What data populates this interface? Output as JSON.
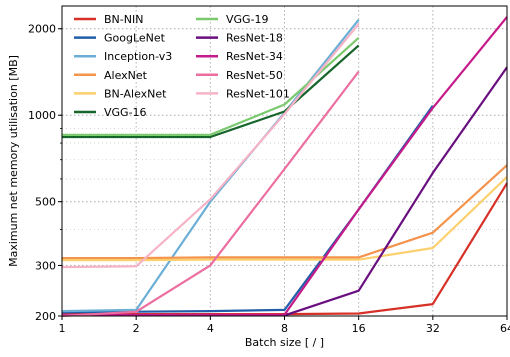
{
  "chart_data": {
    "type": "line",
    "title": "",
    "xlabel": "Batch size [ / ]",
    "ylabel": "Maximum net memory utilisation [MB]",
    "x": [
      1,
      2,
      4,
      8,
      16,
      32,
      64
    ],
    "x_scale": "log2",
    "y_scale": "log",
    "xlim": [
      1,
      64
    ],
    "ylim": [
      200,
      2400
    ],
    "xticks": [
      "1",
      "2",
      "4",
      "8",
      "16",
      "32",
      "64"
    ],
    "yticks": [
      200,
      300,
      500,
      1000,
      2000
    ],
    "ytick_labels": [
      "200",
      "300",
      "500",
      "1000",
      "2000"
    ],
    "grid": true,
    "legend_position": "top-left, two columns",
    "series": [
      {
        "name": "BN-NIN",
        "color": "#d73027",
        "values": [
          203,
          203,
          203,
          203,
          204,
          220,
          580
        ]
      },
      {
        "name": "GoogLeNet",
        "color": "#225ea8",
        "values": [
          206,
          207,
          208,
          210,
          470,
          1080,
          null
        ]
      },
      {
        "name": "Inception-v3",
        "color": "#6baed6",
        "values": [
          208,
          210,
          500,
          1020,
          2150,
          null,
          null
        ]
      },
      {
        "name": "AlexNet",
        "color": "#f4934c",
        "values": [
          318,
          318,
          320,
          320,
          320,
          390,
          670
        ]
      },
      {
        "name": "BN-AlexNet",
        "color": "#fdd06e",
        "values": [
          313,
          313,
          314,
          314,
          314,
          345,
          610
        ]
      },
      {
        "name": "VGG-16",
        "color": "#16652b",
        "values": [
          840,
          840,
          840,
          1030,
          1750,
          null,
          null
        ]
      },
      {
        "name": "VGG-19",
        "color": "#7bc96f",
        "values": [
          855,
          855,
          855,
          1090,
          1860,
          null,
          null
        ]
      },
      {
        "name": "ResNet-18",
        "color": "#6a0f7f",
        "values": [
          201,
          201,
          201,
          201,
          245,
          630,
          1470
        ]
      },
      {
        "name": "ResNet-34",
        "color": "#c51b8a",
        "values": [
          202,
          202,
          202,
          202,
          470,
          1060,
          2200
        ]
      },
      {
        "name": "ResNet-50",
        "color": "#ec6ea0",
        "values": [
          200,
          207,
          300,
          650,
          1420,
          null,
          null
        ]
      },
      {
        "name": "ResNet-101",
        "color": "#f6b3c6",
        "values": [
          296,
          298,
          510,
          1010,
          2080,
          null,
          null
        ]
      }
    ]
  }
}
